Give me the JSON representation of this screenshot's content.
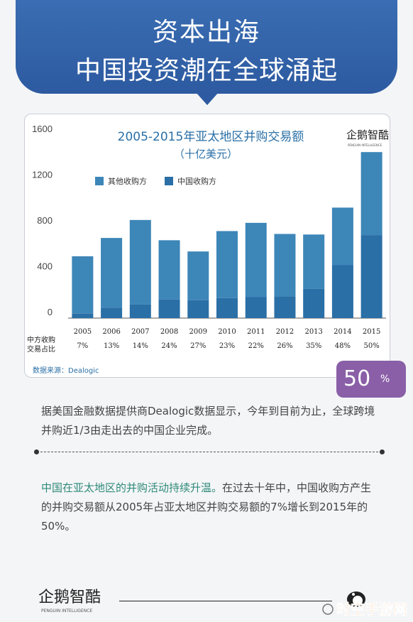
{
  "banner": {
    "title_line1": "资本出海",
    "title_line2": "中国投资潮在全球涌起"
  },
  "colors": {
    "banner": "#2d5aa0",
    "other_series": "#3d86b8",
    "china_series": "#2a6fa6",
    "badge": "#8a5fa7",
    "highlight_text": "#2f8a7a"
  },
  "chart_data": {
    "type": "bar",
    "stacked": true,
    "title": "2005-2015年亚太地区并购交易额",
    "subtitle": "（十亿美元）",
    "categories": [
      "2005",
      "2006",
      "2007",
      "2008",
      "2009",
      "2010",
      "2011",
      "2012",
      "2013",
      "2014",
      "2015"
    ],
    "series": [
      {
        "name": "中国收购方",
        "values": [
          38,
          91,
          120,
          163,
          157,
          175,
          183,
          190,
          255,
          462,
          725
        ]
      },
      {
        "name": "其他收购方",
        "values": [
          502,
          609,
          737,
          517,
          425,
          585,
          649,
          545,
          475,
          503,
          725
        ]
      }
    ],
    "ylim": [
      0,
      1600
    ],
    "yticks": [
      0,
      400,
      800,
      1200,
      1600
    ],
    "legend_position": "top-left",
    "row_label_line1": "中方收购",
    "row_label_line2": "交易占比",
    "share_labels": [
      "7%",
      "13%",
      "14%",
      "24%",
      "27%",
      "23%",
      "22%",
      "26%",
      "35%",
      "48%",
      "50%"
    ],
    "source": "数据来源：Dealogic",
    "grid": false
  },
  "logo": {
    "name": "企鹅智酷",
    "sub": "PENGUIN INTELLIGENCE"
  },
  "badge": {
    "value": "50",
    "unit": "%"
  },
  "paragraph1": "据美国金融数据提供商Dealogic数据显示，今年到目前为止，全球跨境并购近1/3由走出去的中国企业完成。",
  "paragraph2": {
    "highlight": "中国在亚太地区的并购活动持续升温。",
    "rest": "在过去十年中，中国收购方产生的并购交易额从2005年占亚太地区并购交易额的7%增长到2015年的50%。"
  },
  "watermark": "时空手游网"
}
